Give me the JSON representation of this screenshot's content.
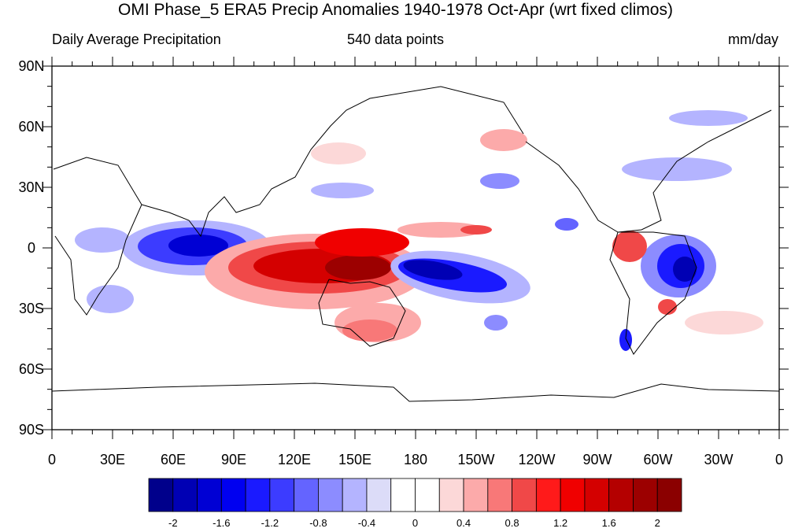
{
  "title": "OMI Phase_5 ERA5 Precip Anomalies 1940-1978 Oct-Apr (wrt fixed climos)",
  "subtitle_left": "Daily Average Precipitation",
  "subtitle_center": "540 data points",
  "subtitle_right": "mm/day",
  "lat_labels": [
    "90N",
    "60N",
    "30N",
    "0",
    "30S",
    "60S",
    "90S"
  ],
  "lon_labels": [
    "0",
    "30E",
    "60E",
    "90E",
    "120E",
    "150E",
    "180",
    "150W",
    "120W",
    "90W",
    "60W",
    "30W",
    "0"
  ],
  "colorbar": {
    "colors": [
      "#00008b",
      "#0000b4",
      "#0000d4",
      "#0000f0",
      "#1a1aff",
      "#3c3cff",
      "#6464ff",
      "#8c8cff",
      "#b4b4ff",
      "#dcdcf8",
      "#ffffff",
      "#ffffff",
      "#fcd8d8",
      "#fcaaaa",
      "#f87878",
      "#f04848",
      "#ff1a1a",
      "#f00000",
      "#d40000",
      "#b40000",
      "#9c0000",
      "#8b0000"
    ],
    "tick_labels": [
      "-2",
      "-1.6",
      "-1.2",
      "-0.8",
      "-0.4",
      "0",
      "0.4",
      "0.8",
      "1.2",
      "1.6",
      "2"
    ]
  }
}
